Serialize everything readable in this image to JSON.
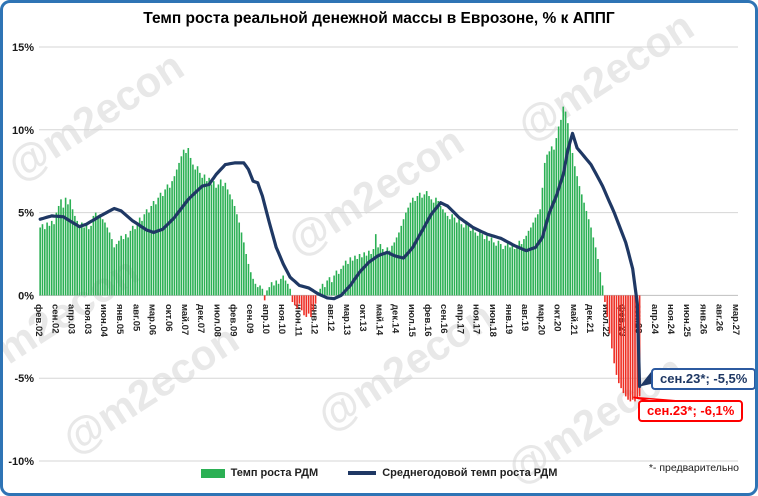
{
  "title": "Темп роста реальной денежной массы в Еврозоне, % к АППГ",
  "watermark": "@m2econ",
  "footnote": "*- предварительно",
  "legend": {
    "bars_label": "Темп роста РДМ",
    "line_label": "Среднегодовой темп роста РДМ"
  },
  "annotations": {
    "line_end": "сен.23*; -5,5%",
    "bar_end": "сен.23*; -6,1%"
  },
  "colors": {
    "bar_positive": "#2bb054",
    "bar_negative": "#ee2e24",
    "line": "#1f3864",
    "grid": "#d6d6d6",
    "grid_zero": "#bfbfbf",
    "frame": "#2e74b5",
    "callout_line_border": "#2c5aa0",
    "callout_bar_border": "#fe0000",
    "watermark": "rgba(100,100,100,0.15)"
  },
  "chart_data": {
    "type": "bar",
    "title": "Темп роста реальной денежной массы в Еврозоне, % к АППГ",
    "ylabel": "% к АППГ",
    "ylim": [
      -10,
      15
    ],
    "y_tick_labels": [
      "15%",
      "10%",
      "5%",
      "0%",
      "-5%",
      "-10%"
    ],
    "y_tick_values": [
      15,
      10,
      5,
      0,
      -5,
      -10
    ],
    "x_first_bar": "фев.02",
    "x_last_bar": "сен.23",
    "x_axis_end": "мар.27",
    "x_tick_step_months": 7,
    "x_tick_labels": [
      "фев.02",
      "сен.02",
      "апр.03",
      "ноя.03",
      "июн.04",
      "янв.05",
      "авг.05",
      "мар.06",
      "окт.06",
      "май.07",
      "дек.07",
      "июл.08",
      "фев.09",
      "сен.09",
      "апр.10",
      "ноя.10",
      "июн.11",
      "янв.12",
      "авг.12",
      "мар.13",
      "окт.13",
      "май.14",
      "дек.14",
      "июл.15",
      "фев.16",
      "сен.16",
      "апр.17",
      "ноя.17",
      "июн.18",
      "янв.19",
      "авг.19",
      "мар.20",
      "окт.20",
      "май.21",
      "дек.21",
      "июл.22",
      "фев.23",
      "сен.23",
      "апр.24",
      "ноя.24",
      "июн.25",
      "янв.26",
      "авг.26",
      "мар.27"
    ],
    "total_month_slots": 302,
    "series": [
      {
        "name": "Темп роста РДМ",
        "type": "bar",
        "monthly_values": [
          4.1,
          4.3,
          4.0,
          4.4,
          4.2,
          4.5,
          4.3,
          5.0,
          5.4,
          5.8,
          5.3,
          5.9,
          5.5,
          5.8,
          5.2,
          4.8,
          4.5,
          4.2,
          4.4,
          4.1,
          4.3,
          4.0,
          4.2,
          4.8,
          5.0,
          4.7,
          4.9,
          4.6,
          4.4,
          4.1,
          3.8,
          3.4,
          2.9,
          3.1,
          3.3,
          3.6,
          3.4,
          3.7,
          3.5,
          3.9,
          4.2,
          4.0,
          4.4,
          4.7,
          4.5,
          4.9,
          5.2,
          5.0,
          5.4,
          5.7,
          5.5,
          5.9,
          6.2,
          6.0,
          6.4,
          6.7,
          6.5,
          6.9,
          7.2,
          7.6,
          8.0,
          8.4,
          8.8,
          8.6,
          8.9,
          8.3,
          7.9,
          7.6,
          7.8,
          7.4,
          7.1,
          7.3,
          6.9,
          7.1,
          6.7,
          6.9,
          6.5,
          6.7,
          7.0,
          6.6,
          6.8,
          6.4,
          6.1,
          5.8,
          5.4,
          4.9,
          4.4,
          3.8,
          3.2,
          2.5,
          1.9,
          1.4,
          1.0,
          0.7,
          0.5,
          0.6,
          0.4,
          -0.3,
          0.3,
          0.5,
          0.8,
          0.6,
          0.9,
          0.7,
          1.0,
          1.2,
          0.9,
          0.7,
          0.4,
          -0.4,
          -0.6,
          -0.8,
          -0.5,
          -0.9,
          -1.2,
          -1.3,
          -1.1,
          -1.3,
          -0.9,
          -0.5,
          0.2,
          0.4,
          0.7,
          0.5,
          0.9,
          1.1,
          0.8,
          1.2,
          1.5,
          1.3,
          1.6,
          1.8,
          2.1,
          1.9,
          2.3,
          2.1,
          2.4,
          2.2,
          2.5,
          2.3,
          2.6,
          2.4,
          2.7,
          2.5,
          2.8,
          3.7,
          2.9,
          3.1,
          2.8,
          2.6,
          2.9,
          2.7,
          3.0,
          3.2,
          3.5,
          3.8,
          4.2,
          4.6,
          5.0,
          5.3,
          5.6,
          5.9,
          5.7,
          6.0,
          6.2,
          5.9,
          6.1,
          6.3,
          6.0,
          5.8,
          5.6,
          5.9,
          5.7,
          5.4,
          5.2,
          5.0,
          4.8,
          4.6,
          4.9,
          4.7,
          4.4,
          4.6,
          4.3,
          4.1,
          4.4,
          4.2,
          3.9,
          4.1,
          3.8,
          3.6,
          3.9,
          3.7,
          3.4,
          3.6,
          3.3,
          3.5,
          3.2,
          3.0,
          3.3,
          3.1,
          2.8,
          3.0,
          3.2,
          2.9,
          3.1,
          2.8,
          3.0,
          3.3,
          3.1,
          3.4,
          3.6,
          3.9,
          4.1,
          4.4,
          4.7,
          4.9,
          5.2,
          6.5,
          8.0,
          8.5,
          8.7,
          9.0,
          8.8,
          9.5,
          10.2,
          10.6,
          11.4,
          11.1,
          10.4,
          9.4,
          8.6,
          7.8,
          7.2,
          6.6,
          6.1,
          5.6,
          5.1,
          4.6,
          4.1,
          3.5,
          2.9,
          2.2,
          1.4,
          0.6,
          -0.4,
          -1.3,
          -2.3,
          -3.2,
          -4.1,
          -4.8,
          -5.3,
          -5.6,
          -5.9,
          -6.1,
          -6.3,
          -6.4,
          -6.3,
          -6.4,
          -6.2,
          -6.1
        ],
        "last_value_label": "сен.23*; -6,1%"
      },
      {
        "name": "Среднегодовой темп роста РДМ",
        "type": "line",
        "anchors_month_value": [
          [
            0,
            4.6
          ],
          [
            5,
            4.8
          ],
          [
            10,
            4.75
          ],
          [
            14,
            4.4
          ],
          [
            17,
            4.15
          ],
          [
            20,
            4.3
          ],
          [
            26,
            4.8
          ],
          [
            32,
            5.25
          ],
          [
            35,
            5.1
          ],
          [
            40,
            4.5
          ],
          [
            46,
            3.95
          ],
          [
            49,
            3.8
          ],
          [
            53,
            4.0
          ],
          [
            58,
            4.7
          ],
          [
            64,
            5.8
          ],
          [
            70,
            6.6
          ],
          [
            73,
            6.7
          ],
          [
            76,
            7.3
          ],
          [
            80,
            7.9
          ],
          [
            84,
            8.0
          ],
          [
            88,
            8.0
          ],
          [
            90,
            7.6
          ],
          [
            92,
            6.9
          ],
          [
            94,
            6.8
          ],
          [
            96,
            6.0
          ],
          [
            99,
            4.4
          ],
          [
            102,
            2.9
          ],
          [
            105,
            1.9
          ],
          [
            108,
            1.1
          ],
          [
            112,
            0.6
          ],
          [
            116,
            0.45
          ],
          [
            120,
            0.1
          ],
          [
            124,
            -0.15
          ],
          [
            127,
            -0.2
          ],
          [
            130,
            0.0
          ],
          [
            134,
            0.6
          ],
          [
            138,
            1.4
          ],
          [
            142,
            2.0
          ],
          [
            146,
            2.4
          ],
          [
            150,
            2.6
          ],
          [
            153,
            2.4
          ],
          [
            157,
            2.25
          ],
          [
            161,
            2.9
          ],
          [
            165,
            3.9
          ],
          [
            169,
            4.9
          ],
          [
            173,
            5.6
          ],
          [
            176,
            5.4
          ],
          [
            181,
            4.7
          ],
          [
            187,
            4.1
          ],
          [
            193,
            3.7
          ],
          [
            199,
            3.45
          ],
          [
            205,
            3.0
          ],
          [
            210,
            2.7
          ],
          [
            214,
            2.9
          ],
          [
            217,
            3.5
          ],
          [
            220,
            5.0
          ],
          [
            223,
            6.0
          ],
          [
            226,
            7.3
          ],
          [
            228,
            8.8
          ],
          [
            230,
            9.78
          ],
          [
            232,
            8.9
          ],
          [
            238,
            7.9
          ],
          [
            243,
            6.6
          ],
          [
            248,
            5.0
          ],
          [
            253,
            3.2
          ],
          [
            256,
            1.6
          ],
          [
            258,
            -0.5
          ],
          [
            259,
            -5.5
          ]
        ],
        "last_value_label": "сен.23*; -5,5%"
      }
    ]
  }
}
